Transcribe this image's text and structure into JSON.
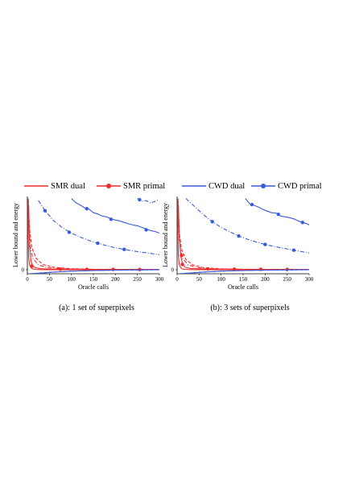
{
  "legend": {
    "items": [
      {
        "label": "SMR dual",
        "color": "#ef2b2b",
        "style": "solid",
        "marker": false
      },
      {
        "label": "SMR primal",
        "color": "#ef2b2b",
        "style": "solid",
        "marker": true
      },
      {
        "label": "CWD dual",
        "color": "#3a5bd9",
        "style": "solid",
        "marker": false
      },
      {
        "label": "CWD primal",
        "color": "#3a5bd9",
        "style": "solid",
        "marker": true
      }
    ]
  },
  "chart_data": [
    {
      "type": "line",
      "caption": "(a): 1 set of superpixels",
      "xlabel": "Oracle calls",
      "ylabel": "Lower bound and energy",
      "xlim": [
        0,
        300
      ],
      "xticks": [
        0,
        50,
        100,
        150,
        200,
        250,
        300
      ],
      "yticks": [
        0
      ],
      "ylim": [
        -1,
        18
      ],
      "series": [
        {
          "name": "SMR dual",
          "color": "#ef2b2b",
          "dash": "solid",
          "marker": false,
          "x": [
            2,
            2,
            3,
            5,
            8,
            12,
            18,
            30,
            60,
            150,
            300
          ],
          "y": [
            17.5,
            8,
            3,
            1.2,
            0.5,
            0.2,
            0.08,
            0.03,
            0.01,
            0.0,
            0.0
          ]
        },
        {
          "name": "SMR primal",
          "color": "#ef2b2b",
          "dash": "solid",
          "marker": true,
          "x": [
            3,
            5,
            8,
            12,
            18,
            30,
            50,
            75,
            130,
            200,
            300
          ],
          "y": [
            16,
            6,
            2.2,
            1.0,
            0.5,
            0.25,
            0.15,
            0.12,
            0.08,
            0.06,
            0.05
          ],
          "markers_x": [
            10,
            75,
            135,
            195,
            255
          ],
          "markers_y": [
            0.9,
            0.12,
            0.08,
            0.07,
            0.05
          ]
        },
        {
          "name": "SMR dual (dashed)",
          "color": "#ef2b2b",
          "dash": "dash",
          "marker": false,
          "x": [
            2,
            5,
            10,
            20,
            35,
            60,
            100,
            150,
            300
          ],
          "y": [
            17,
            10,
            5.5,
            2.8,
            1.3,
            0.6,
            0.25,
            0.1,
            0.05
          ]
        },
        {
          "name": "SMR dual (dash-dot)",
          "color": "#ef2b2b",
          "dash": "dashdot",
          "marker": false,
          "x": [
            2,
            6,
            12,
            25,
            45,
            80,
            130,
            200,
            300
          ],
          "y": [
            14,
            6,
            2.8,
            1.2,
            0.5,
            0.2,
            0.1,
            0.05,
            0.02
          ]
        },
        {
          "name": "CWD dual",
          "color": "#3a5bd9",
          "dash": "solid",
          "marker": false,
          "x": [
            5,
            30,
            60,
            100,
            150,
            200,
            250,
            300
          ],
          "y": [
            -1.0,
            -0.85,
            -0.6,
            -0.35,
            -0.2,
            -0.1,
            -0.05,
            0.0
          ]
        },
        {
          "name": "CWD dual (dashed)",
          "color": "#3a5bd9",
          "dash": "dash",
          "marker": false,
          "x": [
            5,
            40,
            80,
            130,
            180,
            240,
            300
          ],
          "y": [
            -1.0,
            -0.7,
            -0.45,
            -0.25,
            -0.15,
            -0.08,
            -0.03
          ]
        },
        {
          "name": "CWD primal",
          "color": "#3a5bd9",
          "dash": "solid",
          "marker": true,
          "x": [
            100,
            110,
            120,
            130,
            140,
            150,
            160,
            170,
            180,
            190,
            200,
            210,
            220,
            230,
            240,
            250,
            260,
            270,
            280,
            290,
            300
          ],
          "y": [
            17.5,
            16.5,
            15.9,
            15.2,
            14.9,
            14.0,
            13.7,
            13.2,
            13.0,
            12.5,
            12.2,
            12.0,
            11.6,
            11.3,
            11.0,
            10.8,
            10.4,
            10.0,
            9.6,
            9.4,
            9.0
          ],
          "markers_x": [
            135,
            190,
            270
          ],
          "markers_y": [
            15.0,
            12.4,
            9.8
          ]
        },
        {
          "name": "CWD primal (dash-dot)",
          "color": "#3a5bd9",
          "dash": "dashdot",
          "marker": true,
          "x": [
            25,
            40,
            60,
            80,
            100,
            120,
            140,
            160,
            180,
            200,
            220,
            240,
            260,
            280,
            300
          ],
          "y": [
            17.0,
            14.5,
            12.0,
            10.3,
            9.0,
            8.0,
            7.2,
            6.5,
            5.9,
            5.4,
            5.0,
            4.6,
            4.3,
            4.0,
            3.7
          ],
          "markers_x": [
            40,
            95,
            160,
            220
          ],
          "markers_y": [
            14.5,
            9.2,
            6.5,
            5.0
          ]
        },
        {
          "name": "CWD primal (top dash-dot)",
          "color": "#3a5bd9",
          "dash": "dashdot",
          "marker": true,
          "x": [
            250,
            260,
            270,
            280,
            290,
            300
          ],
          "y": [
            17.5,
            16.8,
            17.0,
            16.4,
            16.8,
            17.3
          ],
          "markers_x": [
            255
          ],
          "markers_y": [
            17.2
          ]
        }
      ]
    },
    {
      "type": "line",
      "caption": "(b): 3 sets of superpixels",
      "xlabel": "Oracle calls",
      "ylabel": "Lower bound and energy",
      "xlim": [
        0,
        300
      ],
      "xticks": [
        0,
        50,
        100,
        150,
        200,
        250,
        300
      ],
      "yticks": [
        0
      ],
      "ylim": [
        -1,
        18
      ],
      "series": [
        {
          "name": "SMR dual",
          "color": "#ef2b2b",
          "dash": "solid",
          "marker": false,
          "x": [
            2,
            2,
            3,
            5,
            8,
            12,
            18,
            30,
            60,
            150,
            300
          ],
          "y": [
            17.5,
            9,
            3.5,
            1.3,
            0.5,
            0.2,
            0.08,
            0.03,
            0.01,
            0.0,
            0.0
          ]
        },
        {
          "name": "SMR primal",
          "color": "#ef2b2b",
          "dash": "solid",
          "marker": true,
          "x": [
            3,
            5,
            8,
            12,
            18,
            30,
            50,
            75,
            130,
            200,
            300
          ],
          "y": [
            16,
            8,
            3.5,
            1.5,
            0.6,
            0.3,
            0.2,
            0.15,
            0.1,
            0.08,
            0.06
          ],
          "markers_x": [
            10,
            12,
            70,
            130,
            190,
            250
          ],
          "markers_y": [
            3.5,
            1.3,
            0.2,
            0.12,
            0.09,
            0.07
          ]
        },
        {
          "name": "SMR dual (dashed)",
          "color": "#ef2b2b",
          "dash": "dash",
          "marker": false,
          "x": [
            2,
            5,
            10,
            20,
            35,
            60,
            100,
            150,
            300
          ],
          "y": [
            17,
            9,
            5.0,
            2.5,
            1.2,
            0.5,
            0.2,
            0.1,
            0.05
          ]
        },
        {
          "name": "SMR dual (dash-dot)",
          "color": "#ef2b2b",
          "dash": "dashdot",
          "marker": false,
          "x": [
            2,
            6,
            12,
            25,
            45,
            80,
            130,
            200,
            300
          ],
          "y": [
            14,
            6,
            2.8,
            1.2,
            0.5,
            0.2,
            0.1,
            0.05,
            0.02
          ]
        },
        {
          "name": "CWD dual",
          "color": "#3a5bd9",
          "dash": "solid",
          "marker": false,
          "x": [
            5,
            30,
            60,
            100,
            150,
            200,
            250,
            300
          ],
          "y": [
            -1.0,
            -0.85,
            -0.6,
            -0.35,
            -0.2,
            -0.1,
            -0.05,
            0.0
          ]
        },
        {
          "name": "CWD dual (dashed)",
          "color": "#3a5bd9",
          "dash": "dash",
          "marker": false,
          "x": [
            5,
            40,
            80,
            130,
            180,
            240,
            300
          ],
          "y": [
            -1.0,
            -0.7,
            -0.45,
            -0.25,
            -0.15,
            -0.08,
            -0.03
          ]
        },
        {
          "name": "CWD primal",
          "color": "#3a5bd9",
          "dash": "solid",
          "marker": true,
          "x": [
            155,
            165,
            175,
            185,
            195,
            205,
            215,
            225,
            235,
            245,
            255,
            265,
            275,
            285,
            295,
            300
          ],
          "y": [
            17.5,
            16.2,
            15.8,
            15.4,
            14.8,
            14.4,
            14.0,
            13.9,
            13.2,
            13.0,
            12.8,
            12.5,
            12.0,
            11.6,
            11.3,
            11.0
          ],
          "markers_x": [
            170,
            230,
            285
          ],
          "markers_y": [
            16.0,
            13.6,
            11.6
          ]
        },
        {
          "name": "CWD primal (dash-dot)",
          "color": "#3a5bd9",
          "dash": "dashdot",
          "marker": true,
          "x": [
            20,
            40,
            60,
            80,
            100,
            120,
            140,
            160,
            180,
            200,
            220,
            240,
            260,
            280,
            300
          ],
          "y": [
            17.5,
            15.5,
            13.5,
            11.8,
            10.4,
            9.3,
            8.3,
            7.5,
            6.8,
            6.2,
            5.7,
            5.3,
            4.9,
            4.5,
            4.1
          ],
          "markers_x": [
            80,
            140,
            200,
            265
          ],
          "markers_y": [
            11.8,
            8.3,
            6.2,
            4.8
          ]
        }
      ]
    }
  ]
}
